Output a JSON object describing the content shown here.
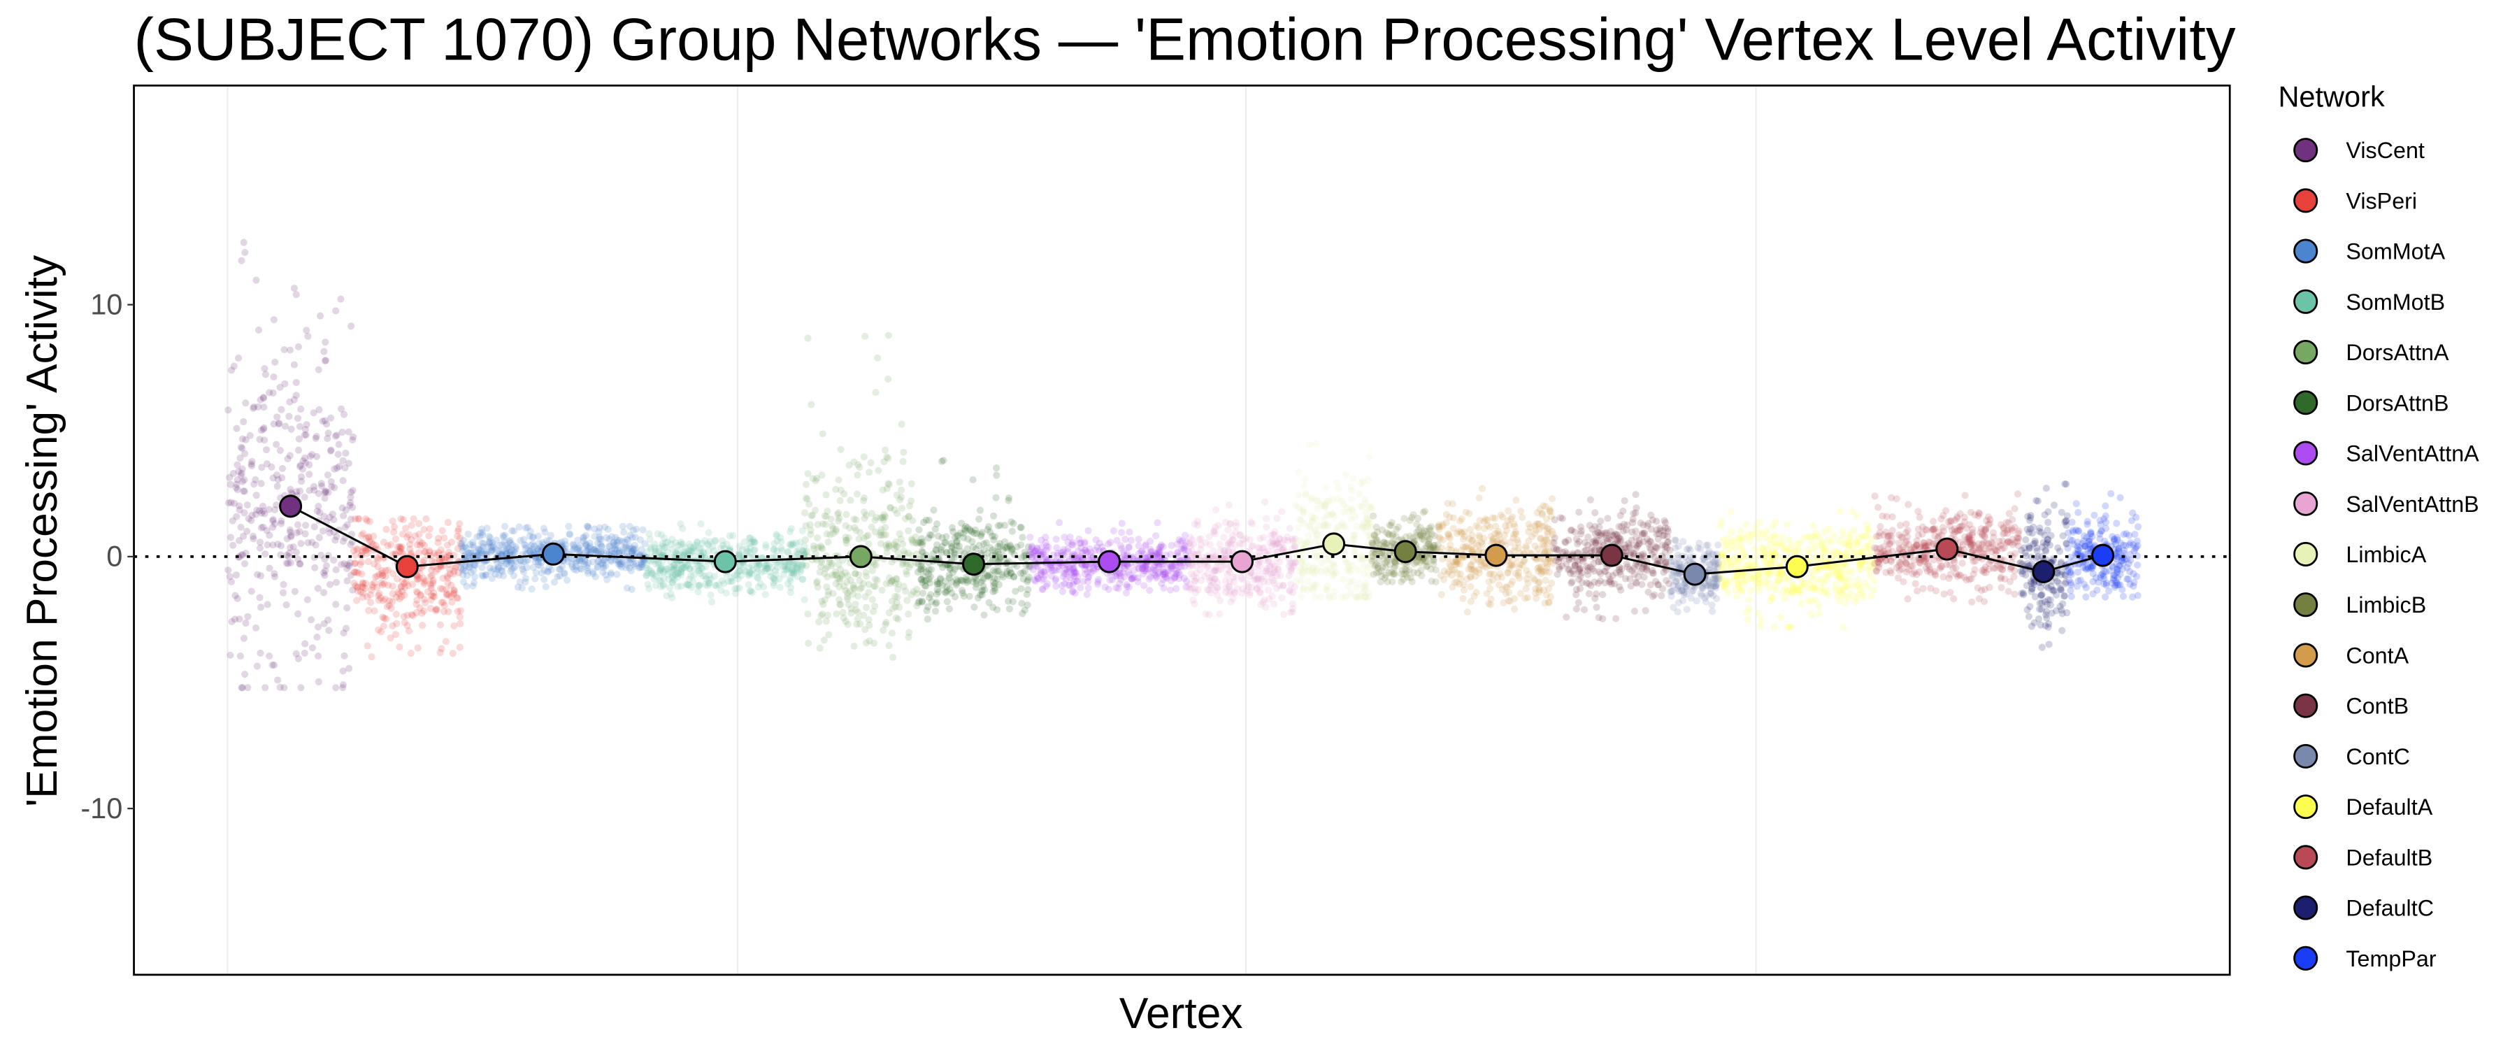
{
  "chart_data": {
    "type": "scatter",
    "title": "(SUBJECT 1070) Group Networks — 'Emotion Processing' Vertex Level Activity",
    "xlabel": "Vertex",
    "ylabel": "'Emotion Processing' Activity",
    "xlim": [
      -49,
      1048
    ],
    "ylim": [
      -16.6,
      18.7
    ],
    "x_gridlines": [
      0,
      267,
      533,
      800
    ],
    "yticks": [
      10,
      0,
      -10
    ],
    "ytick_labels": [
      "10",
      "0",
      "-10"
    ],
    "reference_line_y": 0,
    "legend": {
      "title": "Network",
      "placement": "right"
    },
    "series": [
      {
        "name": "VisCent",
        "color": "#70317f",
        "x_start": 0,
        "x_end": 66,
        "mean": 2.0,
        "sd": 3.2,
        "min": -5.2,
        "max": 13.0
      },
      {
        "name": "VisPeri",
        "color": "#e8403a",
        "x_start": 66,
        "x_end": 122,
        "mean": -0.4,
        "sd": 1.1,
        "min": -4.0,
        "max": 1.5
      },
      {
        "name": "SomMotA",
        "color": "#4b84cf",
        "x_start": 122,
        "x_end": 219,
        "mean": 0.1,
        "sd": 0.45,
        "min": -1.3,
        "max": 1.2
      },
      {
        "name": "SomMotB",
        "color": "#6cc3a8",
        "x_start": 219,
        "x_end": 302,
        "mean": -0.2,
        "sd": 0.55,
        "min": -1.8,
        "max": 1.3
      },
      {
        "name": "DorsAttnA",
        "color": "#76a863",
        "x_start": 302,
        "x_end": 361,
        "mean": 0.0,
        "sd": 1.7,
        "min": -4.0,
        "max": 9.6
      },
      {
        "name": "DorsAttnB",
        "color": "#2f6a2a",
        "x_start": 361,
        "x_end": 420,
        "mean": -0.3,
        "sd": 0.9,
        "min": -2.5,
        "max": 4.0
      },
      {
        "name": "SalVentAttnA",
        "color": "#ab4bf0",
        "x_start": 420,
        "x_end": 503,
        "mean": -0.2,
        "sd": 0.5,
        "min": -1.5,
        "max": 1.4
      },
      {
        "name": "SalVentAttnB",
        "color": "#e8a4d2",
        "x_start": 503,
        "x_end": 559,
        "mean": -0.2,
        "sd": 0.8,
        "min": -2.3,
        "max": 2.3
      },
      {
        "name": "LimbicA",
        "color": "#e6f2b8",
        "x_start": 559,
        "x_end": 599,
        "mean": 0.5,
        "sd": 1.3,
        "min": -1.6,
        "max": 5.5
      },
      {
        "name": "LimbicB",
        "color": "#748040",
        "x_start": 599,
        "x_end": 634,
        "mean": 0.2,
        "sd": 0.6,
        "min": -1.0,
        "max": 1.8
      },
      {
        "name": "ContA",
        "color": "#d39c4d",
        "x_start": 634,
        "x_end": 694,
        "mean": 0.05,
        "sd": 0.9,
        "min": -2.2,
        "max": 3.6
      },
      {
        "name": "ContB",
        "color": "#7a3545",
        "x_start": 694,
        "x_end": 755,
        "mean": 0.05,
        "sd": 0.85,
        "min": -2.5,
        "max": 2.6
      },
      {
        "name": "ContC",
        "color": "#7889ad",
        "x_start": 755,
        "x_end": 781,
        "mean": -0.7,
        "sd": 0.6,
        "min": -2.2,
        "max": 0.7
      },
      {
        "name": "DefaultA",
        "color": "#fdfd50",
        "x_start": 781,
        "x_end": 862,
        "mean": -0.4,
        "sd": 0.8,
        "min": -2.8,
        "max": 1.8
      },
      {
        "name": "DefaultB",
        "color": "#b94a55",
        "x_start": 862,
        "x_end": 938,
        "mean": 0.3,
        "sd": 0.7,
        "min": -1.8,
        "max": 2.6
      },
      {
        "name": "DefaultC",
        "color": "#1b1f6e",
        "x_start": 938,
        "x_end": 963,
        "mean": -0.6,
        "sd": 1.1,
        "min": -3.6,
        "max": 3.3
      },
      {
        "name": "TempPar",
        "color": "#1a3ef5",
        "x_start": 963,
        "x_end": 1000,
        "mean": 0.05,
        "sd": 0.8,
        "min": -1.6,
        "max": 2.5
      }
    ]
  }
}
